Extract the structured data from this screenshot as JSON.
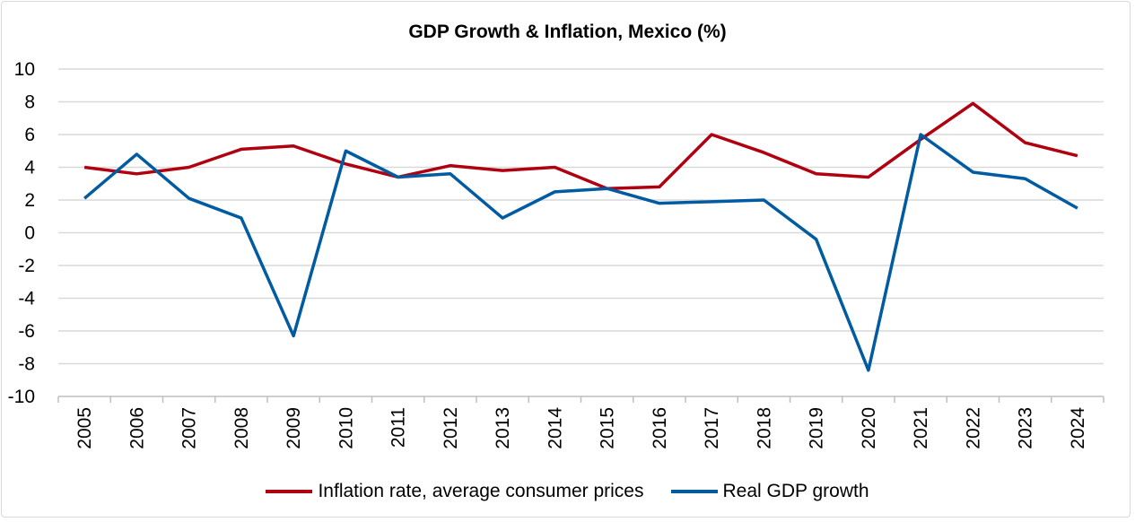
{
  "chart_data": {
    "type": "line",
    "title": "GDP Growth & Inflation, Mexico (%)",
    "xlabel": "",
    "ylabel": "",
    "categories": [
      "2005",
      "2006",
      "2007",
      "2008",
      "2009",
      "2010",
      "2011",
      "2012",
      "2013",
      "2014",
      "2015",
      "2016",
      "2017",
      "2018",
      "2019",
      "2020",
      "2021",
      "2022",
      "2023",
      "2024"
    ],
    "ylim": [
      -10,
      10
    ],
    "yticks": [
      "10",
      "8",
      "6",
      "4",
      "2",
      "0",
      "-2",
      "-4",
      "-6",
      "-8",
      "-10"
    ],
    "grid": true,
    "legend_position": "bottom",
    "series": [
      {
        "name": "Inflation rate, average consumer prices",
        "color": "#B00010",
        "values": [
          4.0,
          3.6,
          4.0,
          5.1,
          5.3,
          4.2,
          3.4,
          4.1,
          3.8,
          4.0,
          2.7,
          2.8,
          6.0,
          4.9,
          3.6,
          3.4,
          5.7,
          7.9,
          5.5,
          4.7
        ]
      },
      {
        "name": "Real GDP growth",
        "color": "#005BA1",
        "values": [
          2.1,
          4.8,
          2.1,
          0.9,
          -6.3,
          5.0,
          3.4,
          3.6,
          0.9,
          2.5,
          2.7,
          1.8,
          1.9,
          2.0,
          -0.4,
          -8.4,
          6.0,
          3.7,
          3.3,
          1.5
        ]
      }
    ]
  }
}
